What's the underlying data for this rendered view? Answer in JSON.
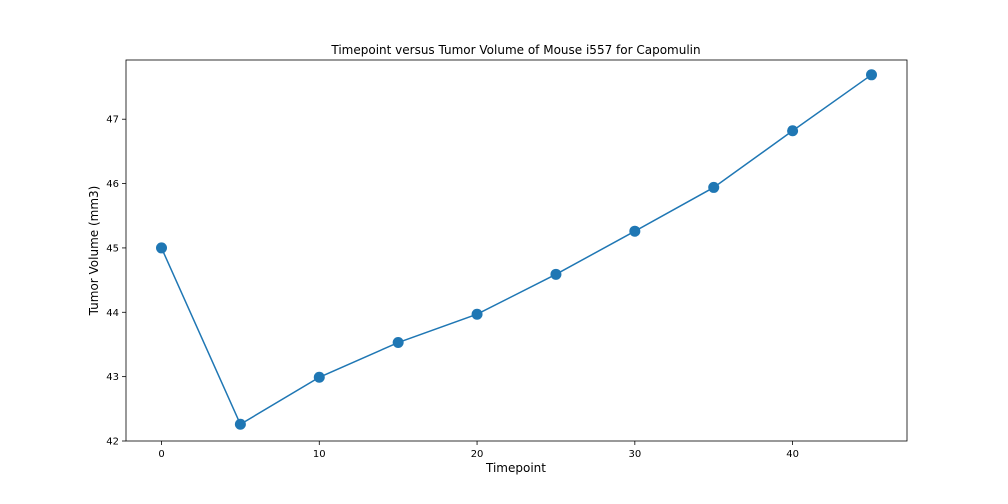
{
  "chart_data": {
    "type": "line",
    "title": "Timepoint versus Tumor Volume of Mouse i557 for Capomulin",
    "xlabel": "Timepoint",
    "ylabel": "Tumor Volume (mm3)",
    "xlim": [
      -2.25,
      47.25
    ],
    "ylim": [
      42.0,
      47.92
    ],
    "xticks": [
      0,
      10,
      20,
      30,
      40
    ],
    "yticks": [
      42,
      43,
      44,
      45,
      46,
      47
    ],
    "grid": false,
    "series": [
      {
        "color": "#1f77b4",
        "marker": "circle",
        "x": [
          0,
          5,
          10,
          15,
          20,
          25,
          30,
          35,
          40,
          45
        ],
        "y": [
          45.0,
          42.26,
          42.99,
          43.53,
          43.97,
          44.59,
          45.26,
          45.94,
          46.82,
          47.69
        ]
      }
    ]
  }
}
